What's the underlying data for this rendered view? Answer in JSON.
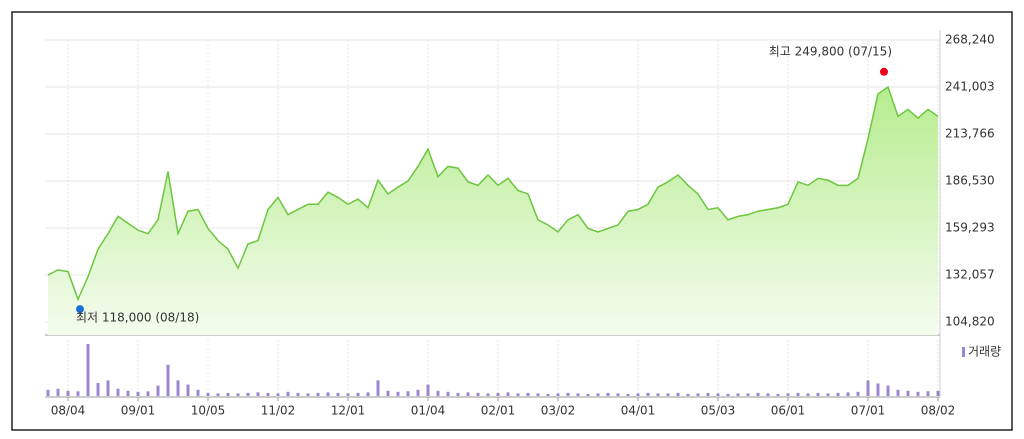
{
  "chart_data": {
    "type": "line",
    "categories": [
      null,
      null,
      "08/04",
      null,
      null,
      null,
      null,
      null,
      null,
      "09/01",
      null,
      null,
      null,
      null,
      null,
      null,
      "10/05",
      null,
      null,
      null,
      null,
      null,
      null,
      "11/02",
      null,
      null,
      null,
      null,
      null,
      null,
      "12/01",
      null,
      null,
      null,
      null,
      null,
      null,
      null,
      "01/04",
      null,
      null,
      null,
      null,
      null,
      null,
      "02/01",
      null,
      null,
      null,
      null,
      null,
      "03/02",
      null,
      null,
      null,
      null,
      null,
      null,
      null,
      "04/01",
      null,
      null,
      null,
      null,
      null,
      null,
      null,
      "05/03",
      null,
      null,
      null,
      null,
      null,
      null,
      "06/01",
      null,
      null,
      null,
      null,
      null,
      null,
      null,
      "07/01",
      null,
      null,
      null,
      null,
      null,
      null,
      "08/02"
    ],
    "series": [
      {
        "color": "#6cc63e",
        "values": [
          132000,
          135000,
          134000,
          118000,
          131000,
          147000,
          156000,
          166000,
          162000,
          158000,
          156000,
          164000,
          192000,
          156000,
          169000,
          170000,
          159000,
          152000,
          147000,
          136000,
          150000,
          152000,
          170000,
          177000,
          167000,
          170000,
          173000,
          173000,
          180000,
          177000,
          173000,
          176000,
          171000,
          187000,
          179000,
          183000,
          186500,
          195000,
          205000,
          189000,
          195000,
          194000,
          186000,
          184000,
          190000,
          184000,
          188000,
          181000,
          179000,
          164000,
          161000,
          157000,
          164000,
          167000,
          159000,
          157000,
          159000,
          161000,
          169000,
          170000,
          173000,
          183000,
          186000,
          190000,
          184000,
          179000,
          170000,
          171000,
          164000,
          166000,
          167000,
          169000,
          170000,
          171000,
          173000,
          186000,
          184000,
          188000,
          187000,
          184000,
          184000,
          188000,
          211000,
          237000,
          241000,
          224000,
          228000,
          223000,
          228000,
          224000
        ]
      }
    ],
    "ylim": [
      97240,
      268240
    ],
    "yticks": [
      {
        "value": 104820,
        "label": "104,820"
      },
      {
        "value": 132057,
        "label": "132,057"
      },
      {
        "value": 159293,
        "label": "159,293"
      },
      {
        "value": 186530,
        "label": "186,530"
      },
      {
        "value": 213766,
        "label": "213,766"
      },
      {
        "value": 241003,
        "label": "241,003"
      },
      {
        "value": 268240,
        "label": "268,240"
      }
    ],
    "grid": true,
    "annotations": [
      {
        "text": "최고 249,800 (07/15)",
        "value": 249800,
        "color": "#e8001c"
      },
      {
        "text": "최저 118,000 (08/18)",
        "value": 118000,
        "color": "#1a6fd8"
      }
    ],
    "volume": {
      "type": "bar",
      "name": "거래량",
      "color": "#9b86cf",
      "ylim": [
        0,
        100
      ],
      "values": [
        12,
        14,
        10,
        9,
        100,
        25,
        30,
        14,
        10,
        8,
        9,
        20,
        60,
        30,
        22,
        12,
        6,
        5,
        6,
        5,
        6,
        7,
        6,
        5,
        8,
        6,
        5,
        6,
        7,
        6,
        5,
        6,
        7,
        30,
        10,
        8,
        9,
        12,
        22,
        10,
        8,
        6,
        7,
        6,
        5,
        6,
        7,
        5,
        6,
        5,
        4,
        5,
        6,
        5,
        4,
        5,
        6,
        5,
        4,
        5,
        6,
        5,
        5,
        6,
        4,
        5,
        6,
        5,
        4,
        5,
        5,
        6,
        5,
        4,
        5,
        6,
        5,
        6,
        5,
        6,
        7,
        8,
        30,
        24,
        20,
        12,
        10,
        8,
        9,
        10
      ]
    }
  }
}
